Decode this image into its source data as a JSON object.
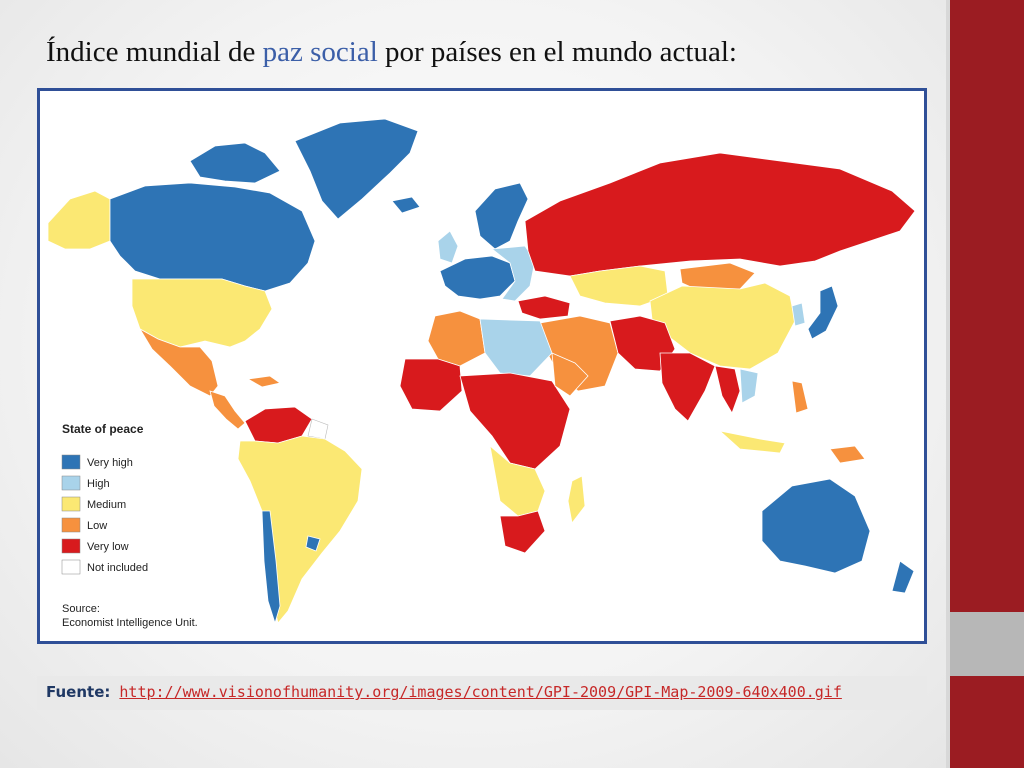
{
  "title": {
    "before": "Índice mundial de ",
    "accent": "paz social",
    "after": " por países en el mundo actual:"
  },
  "legend": {
    "title": "State of peace",
    "items": [
      {
        "label": "Very high",
        "color": "#2e74b5"
      },
      {
        "label": "High",
        "color": "#a9d3ea"
      },
      {
        "label": "Medium",
        "color": "#fbe873"
      },
      {
        "label": "Low",
        "color": "#f6913e"
      },
      {
        "label": "Very low",
        "color": "#d81a1d"
      },
      {
        "label": "Not included",
        "color": "#ffffff"
      }
    ]
  },
  "map_source": {
    "line1": "Source:",
    "line2": "Economist Intelligence Unit."
  },
  "footer": {
    "label": "Fuente:",
    "url": "http://www.visionofhumanity.org/images/content/GPI-2009/GPI-Map-2009-640x400.gif"
  },
  "colors": {
    "accent": "#3c5fa8",
    "frame": "#2f4f97",
    "sidebar_red": "#9b1c22",
    "sidebar_gray": "#b7b7b7"
  }
}
